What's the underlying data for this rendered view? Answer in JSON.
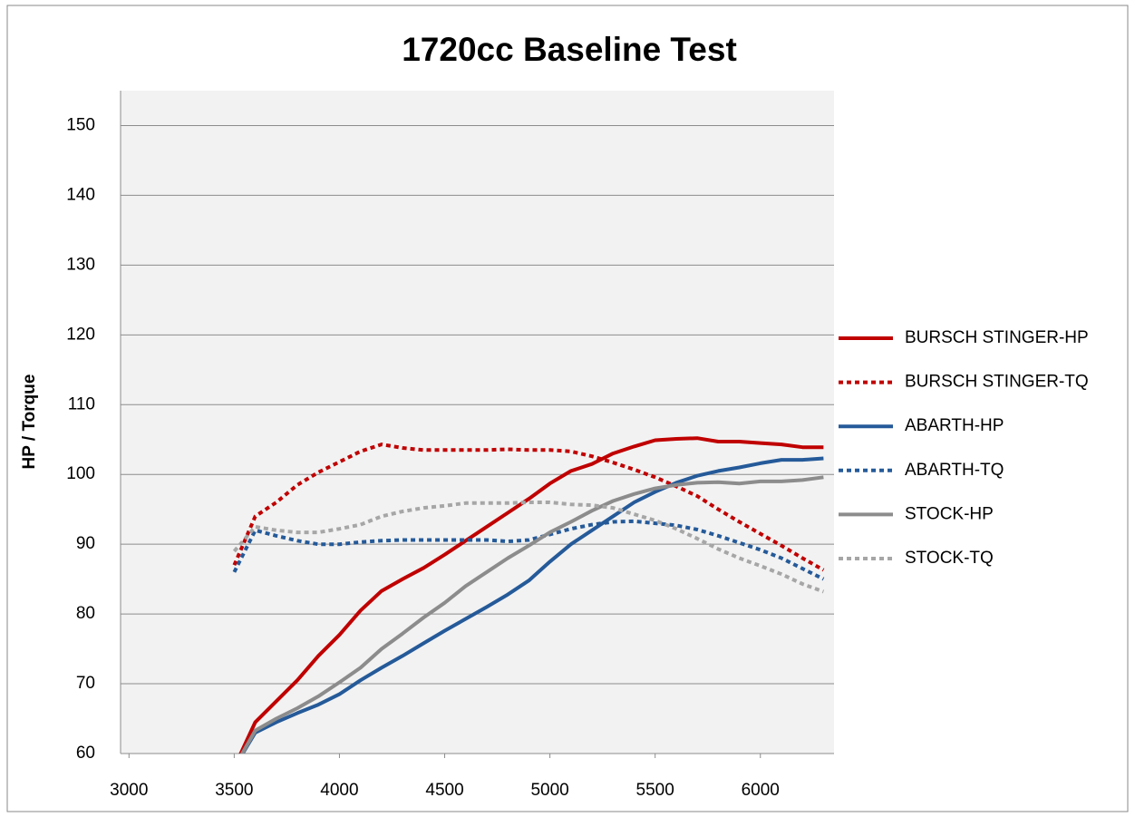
{
  "chart_data": {
    "type": "line",
    "title": "1720cc Baseline Test",
    "y_label": "HP / Torque",
    "x": [
      3500,
      3600,
      3700,
      3800,
      3900,
      4000,
      4100,
      4200,
      4300,
      4400,
      4500,
      4600,
      4700,
      4800,
      4900,
      5000,
      5100,
      5200,
      5300,
      5400,
      5500,
      5600,
      5700,
      5800,
      5900,
      6000,
      6100,
      6200,
      6300
    ],
    "series": [
      {
        "name": "BURSCH STINGER-HP",
        "color": "#c00000",
        "dashed": false,
        "values": [
          58,
          64.5,
          67.5,
          70.5,
          74,
          77,
          80.5,
          83.3,
          85,
          86.6,
          88.5,
          90.5,
          92.5,
          94.5,
          96.5,
          98.7,
          100.5,
          101.5,
          103,
          104,
          104.9,
          105.1,
          105.2,
          104.7,
          104.7,
          104.5,
          104.3,
          103.9,
          103.9
        ]
      },
      {
        "name": "BURSCH STINGER-TQ",
        "color": "#c00000",
        "dashed": true,
        "values": [
          87,
          94,
          96,
          98.5,
          100.3,
          101.8,
          103.3,
          104.3,
          103.8,
          103.5,
          103.5,
          103.5,
          103.5,
          103.6,
          103.5,
          103.5,
          103.3,
          102.6,
          101.7,
          100.7,
          99.6,
          98.3,
          96.9,
          95,
          93.2,
          91.5,
          89.8,
          88,
          86.3
        ]
      },
      {
        "name": "ABARTH-HP",
        "color": "#255a99",
        "dashed": false,
        "values": [
          58,
          63,
          64.5,
          65.8,
          67,
          68.5,
          70.5,
          72.3,
          74,
          75.8,
          77.6,
          79.3,
          81,
          82.8,
          84.8,
          87.5,
          90,
          92,
          94,
          96,
          97.5,
          98.8,
          99.8,
          100.5,
          101,
          101.6,
          102.1,
          102.1,
          102.3
        ]
      },
      {
        "name": "ABARTH-TQ",
        "color": "#255a99",
        "dashed": true,
        "values": [
          86,
          92,
          91.2,
          90.5,
          90,
          90,
          90.3,
          90.5,
          90.6,
          90.6,
          90.6,
          90.6,
          90.6,
          90.4,
          90.6,
          91.4,
          92.2,
          92.8,
          93.2,
          93.3,
          93,
          92.7,
          92.1,
          91.2,
          90.2,
          89.2,
          88,
          86.5,
          85
        ]
      },
      {
        "name": "STOCK-HP",
        "color": "#8c8c8c",
        "dashed": false,
        "values": [
          58,
          63.3,
          65,
          66.5,
          68.2,
          70.2,
          72.3,
          75,
          77.2,
          79.5,
          81.6,
          84,
          86,
          88,
          89.8,
          91.7,
          93.2,
          94.8,
          96.2,
          97.2,
          98,
          98.5,
          98.8,
          98.9,
          98.7,
          99,
          99,
          99.2,
          99.6
        ]
      },
      {
        "name": "STOCK-TQ",
        "color": "#a6a6a6",
        "dashed": true,
        "values": [
          89,
          92.5,
          92,
          91.7,
          91.7,
          92.2,
          92.8,
          94,
          94.7,
          95.2,
          95.5,
          95.9,
          95.9,
          95.9,
          96,
          96,
          95.7,
          95.6,
          95.2,
          94.3,
          93.4,
          92.2,
          90.8,
          89.3,
          88,
          86.9,
          85.7,
          84.3,
          83.2
        ]
      }
    ],
    "xlim": [
      2960,
      6350
    ],
    "xticks": [
      3000,
      3500,
      4000,
      4500,
      5000,
      5500,
      6000
    ],
    "ylim": [
      60,
      155
    ],
    "yticks": [
      60,
      70,
      80,
      90,
      100,
      110,
      120,
      130,
      140,
      150
    ],
    "grid": true,
    "legend": "right"
  }
}
